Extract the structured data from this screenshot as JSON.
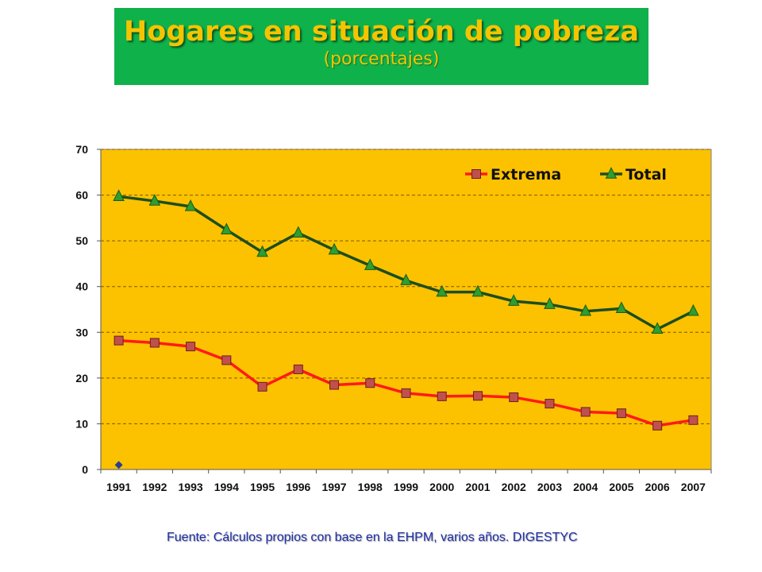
{
  "title": "Hogares en situación de pobreza",
  "subtitle": "(porcentajes)",
  "source": "Fuente: Cálculos propios con base en la EHPM, varios años. DIGESTYC",
  "colors": {
    "plot_background": "#fcc200",
    "extrema_line": "#ff1a1a",
    "extrema_marker": "#c0504d",
    "total_line": "#1e4d1e",
    "total_marker": "#2e9e2e",
    "title_background": "#0fb14a",
    "title_text": "#f5c400"
  },
  "chart_data": {
    "type": "line",
    "title": "Hogares en situación de pobreza",
    "subtitle": "(porcentajes)",
    "xlabel": "",
    "ylabel": "",
    "categories": [
      "1991",
      "1992",
      "1993",
      "1994",
      "1995",
      "1996",
      "1997",
      "1998",
      "1999",
      "2000",
      "2001",
      "2002",
      "2003",
      "2004",
      "2005",
      "2006",
      "2007"
    ],
    "ylim": [
      0,
      70
    ],
    "yticks": [
      0,
      10,
      20,
      30,
      40,
      50,
      60,
      70
    ],
    "grid": "horizontal dashed",
    "legend_position": "top-right",
    "series": [
      {
        "name": "Extrema",
        "marker": "square",
        "values": [
          28.2,
          27.7,
          26.9,
          23.9,
          18.1,
          21.9,
          18.5,
          18.9,
          16.7,
          16.0,
          16.1,
          15.8,
          14.4,
          12.6,
          12.3,
          9.6,
          10.8
        ]
      },
      {
        "name": "Total",
        "marker": "triangle",
        "values": [
          59.7,
          58.7,
          57.5,
          52.4,
          47.5,
          51.7,
          48.0,
          44.6,
          41.3,
          38.8,
          38.8,
          36.8,
          36.1,
          34.6,
          35.2,
          30.7,
          34.6
        ]
      }
    ]
  }
}
